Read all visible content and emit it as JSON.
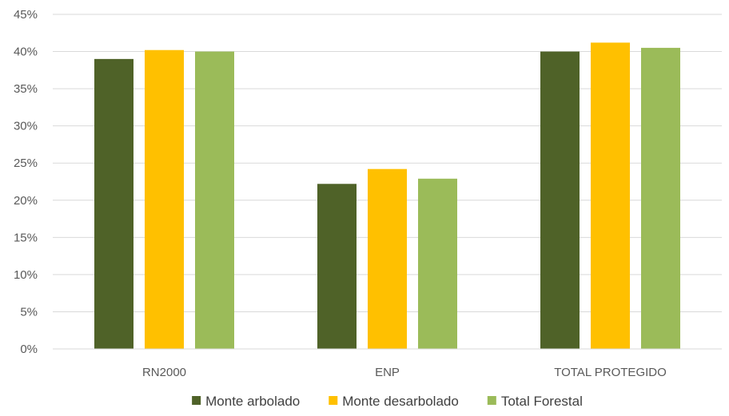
{
  "chart_data": {
    "type": "bar",
    "categories": [
      "RN2000",
      "ENP",
      "TOTAL PROTEGIDO"
    ],
    "series": [
      {
        "name": "Monte arbolado",
        "values": [
          39.0,
          22.2,
          40.0
        ],
        "color": "#4f6228"
      },
      {
        "name": "Monte desarbolado",
        "values": [
          40.2,
          24.2,
          41.2
        ],
        "color": "#ffc000"
      },
      {
        "name": "Total Forestal",
        "values": [
          40.0,
          22.9,
          40.5
        ],
        "color": "#9bbb59"
      }
    ],
    "ylim": [
      0,
      45
    ],
    "yticks": [
      "0%",
      "5%",
      "10%",
      "15%",
      "20%",
      "25%",
      "30%",
      "35%",
      "40%",
      "45%"
    ],
    "ytick_values": [
      0,
      5,
      10,
      15,
      20,
      25,
      30,
      35,
      40,
      45
    ],
    "grid": true,
    "legend_position": "bottom"
  }
}
